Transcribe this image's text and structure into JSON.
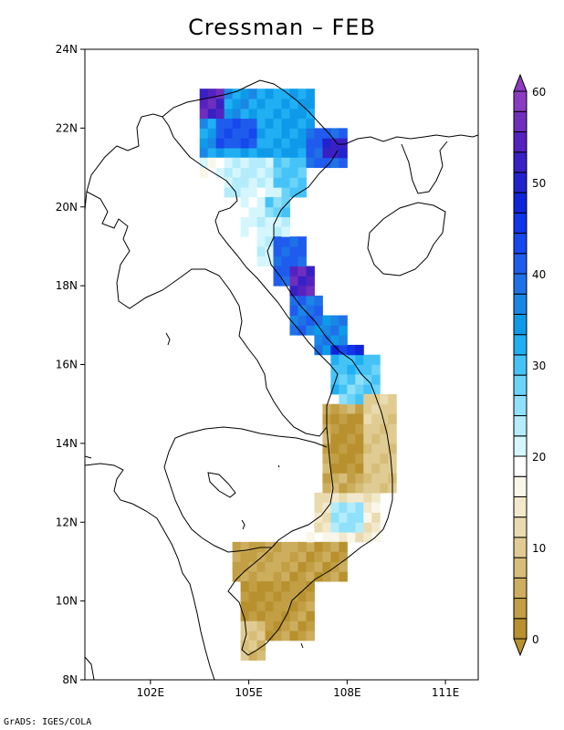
{
  "title": "Cressman – FEB",
  "credit": "GrADS: IGES/COLA",
  "map": {
    "lat_labels": [
      "24N",
      "22N",
      "20N",
      "18N",
      "16N",
      "14N",
      "12N",
      "10N",
      "8N"
    ],
    "lon_labels": [
      "102E",
      "105E",
      "108E",
      "111E"
    ]
  },
  "colorbar": {
    "labels": [
      "0",
      "10",
      "20",
      "30",
      "40",
      "50",
      "60"
    ],
    "colors": [
      "#b8912e",
      "#c29f45",
      "#ccae5e",
      "#d6bd78",
      "#e0cc93",
      "#e9dbaf",
      "#f2e9cc",
      "#faf6ea",
      "#ffffff",
      "#d5f6fd",
      "#b4ecfb",
      "#8fe0fa",
      "#6bd3f8",
      "#46c3f6",
      "#20aff3",
      "#0f9ae9",
      "#1a86e6",
      "#1f71e8",
      "#1f5ced",
      "#1748ee",
      "#1034e8",
      "#0f25d9",
      "#2222cc",
      "#3920c4",
      "#5522c0",
      "#6f2fbc",
      "#8a3cc0"
    ]
  },
  "chart_data": {
    "type": "heatmap",
    "title": "Cressman – FEB",
    "xlabel": "",
    "ylabel": "",
    "xlim": [
      100,
      112
    ],
    "ylim": [
      8,
      24
    ],
    "lon_ticks": [
      102,
      105,
      108,
      111
    ],
    "lat_ticks": [
      8,
      10,
      12,
      14,
      16,
      18,
      20,
      22,
      24
    ],
    "colorbar_range": [
      0,
      60
    ],
    "regions": [
      {
        "area": "North Vietnam mountains (~22.5N,103.5E)",
        "value": 55
      },
      {
        "area": "Northern highlands (~22N,104-106E)",
        "value": 38
      },
      {
        "area": "Red River delta (~20.5N,106E)",
        "value": 22
      },
      {
        "area": "Gulf coast (~21.5N,107.5E)",
        "value": 50
      },
      {
        "area": "North-central coast (~18N,106.3E)",
        "value": 55
      },
      {
        "area": "Central coast (~16.5N,107.5E)",
        "value": 40
      },
      {
        "area": "Central Highlands (~13.5N,108.2E)",
        "value": 4
      },
      {
        "area": "Dalat plateau (~12N,108.2E)",
        "value": 22
      },
      {
        "area": "Mekong delta (~10N,105.5E)",
        "value": 3
      }
    ]
  }
}
